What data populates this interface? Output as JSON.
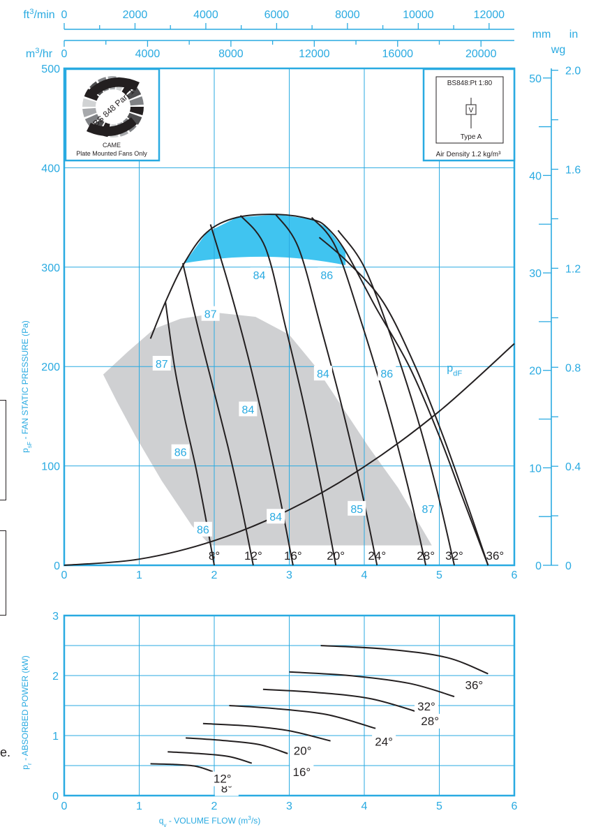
{
  "chart_data": [
    {
      "type": "line",
      "title": "",
      "xlabel": "q_v - VOLUME FLOW (m³/s)",
      "ylabel": "p_sF - FAN STATIC PRESSURE (Pa)",
      "xlim": [
        0,
        6
      ],
      "ylim": [
        0,
        500
      ],
      "x_ticks": [
        0,
        1,
        2,
        3,
        4,
        5,
        6
      ],
      "y_ticks": [
        0,
        100,
        200,
        300,
        400,
        500
      ],
      "grid": true,
      "top_axes": [
        {
          "unit": "ft³/min",
          "ticks": [
            "0",
            "2000",
            "4000",
            "6000",
            "8000",
            "10000",
            "12000"
          ],
          "values": [
            0,
            2000,
            4000,
            6000,
            8000,
            10000,
            12000
          ],
          "per_m3s": 2118.88
        },
        {
          "unit": "m³/hr",
          "ticks": [
            "0",
            "4000",
            "8000",
            "12000",
            "16000",
            "20000"
          ],
          "values": [
            0,
            4000,
            8000,
            12000,
            16000,
            20000
          ],
          "per_m3s": 3600
        }
      ],
      "right_axes": [
        {
          "unit": "mm wg",
          "unit_top": "mm",
          "unit_bottom": "wg",
          "ticks": [
            "0",
            "10",
            "20",
            "30",
            "40",
            "50"
          ],
          "values": [
            0,
            10,
            20,
            30,
            40,
            50
          ],
          "per_pa": 0.10197
        },
        {
          "unit": "in wg",
          "unit_top": "in",
          "ticks": [
            "0",
            "0.4",
            "0.8",
            "1.2",
            "1.6",
            "2.0"
          ],
          "values": [
            0,
            0.4,
            0.8,
            1.2,
            1.6,
            2.0
          ],
          "per_pa": 0.004015
        }
      ],
      "series": [
        {
          "name": "8°",
          "x": [
            2.0,
            1.88,
            1.75,
            1.6,
            1.47,
            1.35
          ],
          "y": [
            0,
            50,
            100,
            150,
            200,
            265
          ]
        },
        {
          "name": "12°",
          "x": [
            2.52,
            2.36,
            2.18,
            1.98,
            1.78,
            1.58
          ],
          "y": [
            0,
            60,
            120,
            180,
            240,
            304
          ]
        },
        {
          "name": "16°",
          "x": [
            3.05,
            2.87,
            2.67,
            2.45,
            2.2,
            1.95
          ],
          "y": [
            0,
            70,
            140,
            210,
            280,
            343
          ]
        },
        {
          "name": "20°",
          "x": [
            3.62,
            3.42,
            3.2,
            2.95,
            2.68,
            2.35
          ],
          "y": [
            0,
            80,
            160,
            240,
            320,
            352
          ]
        },
        {
          "name": "24°",
          "x": [
            4.17,
            3.95,
            3.7,
            3.42,
            3.12,
            2.82
          ],
          "y": [
            0,
            80,
            160,
            240,
            320,
            353
          ]
        },
        {
          "name": "28°",
          "x": [
            4.82,
            4.58,
            4.3,
            3.98,
            3.62,
            3.3
          ],
          "y": [
            0,
            80,
            160,
            240,
            320,
            350
          ]
        },
        {
          "name": "32°",
          "x": [
            5.2,
            4.97,
            4.7,
            4.38,
            4.0,
            3.65
          ],
          "y": [
            0,
            75,
            150,
            225,
            300,
            337
          ]
        },
        {
          "name": "36°",
          "x": [
            5.65,
            5.38,
            5.05,
            4.68,
            4.25,
            3.78,
            3.4
          ],
          "y": [
            0,
            60,
            130,
            200,
            265,
            305,
            330
          ]
        },
        {
          "name": "p_dF",
          "x": [
            0,
            1,
            2,
            3,
            4,
            5,
            6
          ],
          "y": [
            0,
            6.2,
            24.8,
            55.8,
            99.2,
            155,
            223
          ]
        }
      ],
      "envelope": {
        "x": [
          1.15,
          1.35,
          1.6,
          1.9,
          2.3,
          2.85,
          3.3,
          3.5,
          3.75,
          4.15,
          4.6,
          5.0,
          5.3,
          5.65
        ],
        "y": [
          228,
          265,
          304,
          335,
          350,
          353,
          348,
          340,
          316,
          260,
          200,
          130,
          70,
          0
        ]
      },
      "efficiency_labels": [
        {
          "text": "84",
          "x": 2.6,
          "y": 292
        },
        {
          "text": "86",
          "x": 3.5,
          "y": 292
        },
        {
          "text": "87",
          "x": 1.95,
          "y": 253
        },
        {
          "text": "87",
          "x": 1.3,
          "y": 203
        },
        {
          "text": "84",
          "x": 3.45,
          "y": 193
        },
        {
          "text": "86",
          "x": 4.3,
          "y": 193
        },
        {
          "text": "84",
          "x": 2.45,
          "y": 157
        },
        {
          "text": "86",
          "x": 1.55,
          "y": 114
        },
        {
          "text": "85",
          "x": 3.9,
          "y": 57
        },
        {
          "text": "87",
          "x": 4.85,
          "y": 57
        },
        {
          "text": "84",
          "x": 2.82,
          "y": 49
        },
        {
          "text": "86",
          "x": 1.85,
          "y": 36
        }
      ],
      "pdf_label": "p_dF",
      "badge": {
        "line1": "CAME",
        "line2": "Plate Mounted Fans Only",
        "ring_text": "BS 848 Part 1"
      },
      "test_box": {
        "title": "BS848:Pt 1:80",
        "symbol": "V",
        "type": "Type A",
        "density": "Air Density 1.2 kg/m³"
      }
    },
    {
      "type": "line",
      "title": "",
      "xlabel": "q_v - VOLUME FLOW (m³/s)",
      "ylabel": "p_r - ABSORBED POWER (kW)",
      "xlim": [
        0,
        6
      ],
      "ylim": [
        0,
        3
      ],
      "x_ticks": [
        0,
        1,
        2,
        3,
        4,
        5,
        6
      ],
      "y_ticks": [
        0,
        1,
        2,
        3
      ],
      "grid": true,
      "series": [
        {
          "name": "8°",
          "x": [
            1.15,
            1.45,
            1.75,
            1.98
          ],
          "y": [
            0.53,
            0.52,
            0.49,
            0.4
          ]
        },
        {
          "name": "12°",
          "x": [
            1.38,
            1.8,
            2.2,
            2.5
          ],
          "y": [
            0.73,
            0.7,
            0.65,
            0.54
          ]
        },
        {
          "name": "16°",
          "x": [
            1.62,
            2.1,
            2.6,
            2.98
          ],
          "y": [
            0.96,
            0.92,
            0.85,
            0.7
          ]
        },
        {
          "name": "20°",
          "x": [
            1.85,
            2.45,
            3.0,
            3.55
          ],
          "y": [
            1.2,
            1.16,
            1.08,
            0.91
          ]
        },
        {
          "name": "24°",
          "x": [
            2.2,
            2.8,
            3.5,
            4.15
          ],
          "y": [
            1.5,
            1.45,
            1.35,
            1.12
          ]
        },
        {
          "name": "28°",
          "x": [
            2.65,
            3.35,
            4.1,
            4.82
          ],
          "y": [
            1.77,
            1.72,
            1.61,
            1.35
          ]
        },
        {
          "name": "32°",
          "x": [
            3.0,
            3.8,
            4.6,
            5.2
          ],
          "y": [
            2.06,
            2.0,
            1.87,
            1.65
          ]
        },
        {
          "name": "36°",
          "x": [
            3.42,
            4.3,
            5.1,
            5.65
          ],
          "y": [
            2.5,
            2.44,
            2.3,
            2.03
          ]
        }
      ]
    }
  ],
  "margin_text": "e.",
  "colors": {
    "axis_blue": "#29aae1",
    "ink": "#231f20",
    "envelope_blue": "#40c4f0",
    "region_gray": "#cfd0d2"
  }
}
